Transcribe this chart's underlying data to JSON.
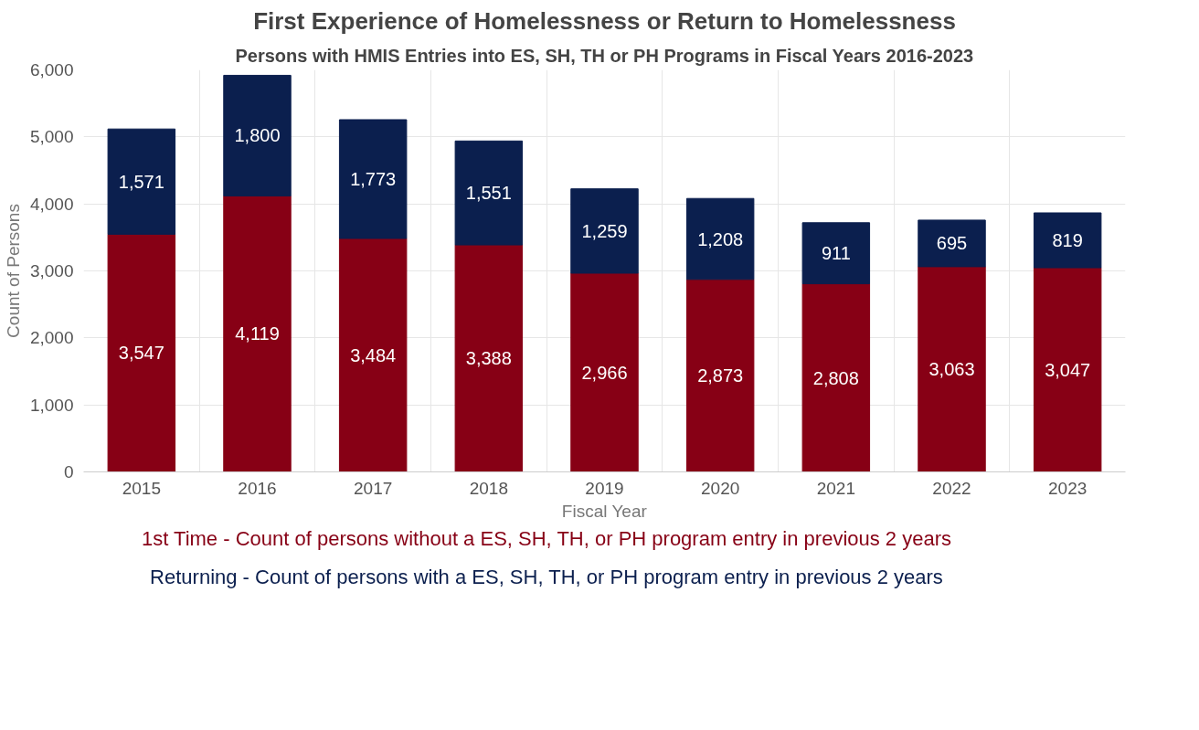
{
  "chart_data": {
    "type": "bar",
    "title": "First Experience of Homelessness or Return to Homelessness",
    "subtitle": "Persons with HMIS Entries into ES, SH, TH or PH Programs in Fiscal Years 2016-2023",
    "xlabel": "Fiscal Year",
    "ylabel": "Count of Persons",
    "categories": [
      "2015",
      "2016",
      "2017",
      "2018",
      "2019",
      "2020",
      "2021",
      "2022",
      "2023"
    ],
    "series": [
      {
        "name": "1st Time - Count of persons without a ES, SH, TH, or PH program entry in previous 2 years",
        "color": "#870015",
        "values": [
          3547,
          4119,
          3484,
          3388,
          2966,
          2873,
          2808,
          3063,
          3047
        ],
        "value_labels": [
          "3,547",
          "4,119",
          "3,484",
          "3,388",
          "2,966",
          "2,873",
          "2,808",
          "3,063",
          "3,047"
        ]
      },
      {
        "name": "Returning - Count of persons with a ES, SH, TH, or PH program entry in previous 2 years",
        "color": "#0b1f4e",
        "values": [
          1571,
          1800,
          1773,
          1551,
          1259,
          1208,
          911,
          695,
          819
        ],
        "value_labels": [
          "1,571",
          "1,800",
          "1,773",
          "1,551",
          "1,259",
          "1,208",
          "911",
          "695",
          "819"
        ]
      }
    ],
    "stacked": true,
    "ylim": [
      0,
      6000
    ],
    "yticks": [
      {
        "value": 0,
        "label": "0"
      },
      {
        "value": 1000,
        "label": "1,000"
      },
      {
        "value": 2000,
        "label": "2,000"
      },
      {
        "value": 3000,
        "label": "3,000"
      },
      {
        "value": 4000,
        "label": "4,000"
      },
      {
        "value": 5000,
        "label": "5,000"
      },
      {
        "value": 6000,
        "label": "6,000"
      }
    ],
    "grid": true,
    "legend": "bottom"
  }
}
